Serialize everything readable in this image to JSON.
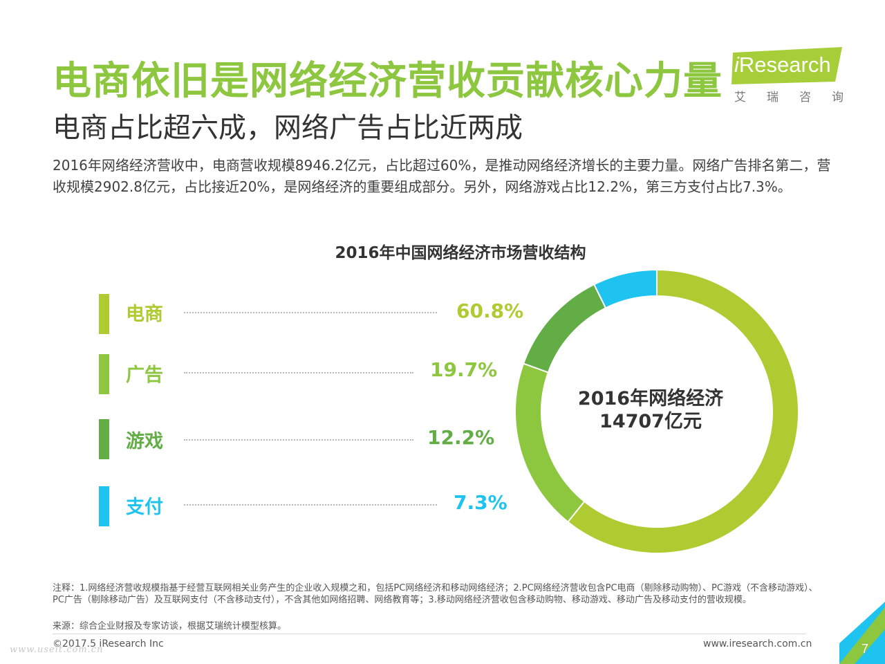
{
  "header": {
    "title": "电商依旧是网络经济营收贡献核心力量",
    "subtitle": "电商占比超六成，网络广告占比近两成",
    "description": "2016年网络经济营收中，电商营收规模8946.2亿元，占比超过60%，是推动网络经济增长的主要力量。网络广告排名第二，营收规模2902.8亿元，占比接近20%，是网络经济的重要组成部分。另外，网络游戏占比12.2%，第三方支付占比7.3%。"
  },
  "logo": {
    "brand_i": "i",
    "brand_rest": "Research",
    "sub_chars": [
      "艾",
      "瑞",
      "咨",
      "询"
    ],
    "color": "#a6ce39"
  },
  "chart_data": {
    "type": "pie",
    "title": "2016年中国网络经济市场营收结构",
    "center_line1": "2016年网络经济",
    "center_line2": "14707亿元",
    "categories": [
      "电商",
      "广告",
      "游戏",
      "支付"
    ],
    "values": [
      60.8,
      19.7,
      12.2,
      7.3
    ],
    "value_labels": [
      "60.8%",
      "19.7%",
      "12.2%",
      "7.3%"
    ],
    "colors": [
      "#afcb32",
      "#8dc63f",
      "#62ad45",
      "#1fc3f0"
    ],
    "legend_position": "left"
  },
  "footer": {
    "note": "注释：1.网络经济营收规模指基于经营互联网相关业务产生的企业收入规模之和，包括PC网络经济和移动网络经济；2.PC网络经济营收包含PC电商（剔除移动购物）、PC游戏（不含移动游戏）、PC广告（剔除移动广告）及互联网支付（不含移动支付），不含其他如网络招聘、网络教育等；3.移动网络经济营收包含移动购物、移动游戏、移动广告及移动支付的营收规模。",
    "source": "来源：综合企业财报及专家访谈，根据艾瑞统计模型核算。",
    "copyright": "©2017.5 iResearch Inc",
    "website": "www.iresearch.com.cn",
    "page_number": "7",
    "watermark": "www.useit.com.cn"
  }
}
